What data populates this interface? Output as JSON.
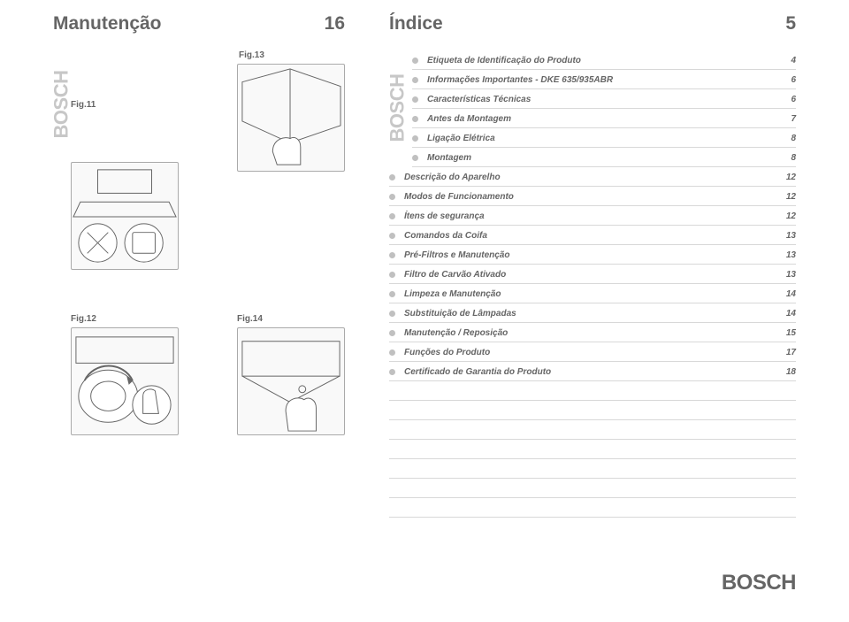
{
  "brand": "BOSCH",
  "left": {
    "title": "Manutenção",
    "page_num": "16",
    "figs": [
      {
        "label": "Fig.11"
      },
      {
        "label": "Fig.13"
      },
      {
        "label": "Fig.12"
      },
      {
        "label": "Fig.14"
      }
    ]
  },
  "right": {
    "title": "Índice",
    "page_num": "5",
    "toc": [
      {
        "title": "Etiqueta de Identificação do Produto",
        "page": "4"
      },
      {
        "title": "Informações Importantes - DKE 635/935ABR",
        "page": "6"
      },
      {
        "title": "Características Técnicas",
        "page": "6"
      },
      {
        "title": "Antes da Montagem",
        "page": "7"
      },
      {
        "title": "Ligação Elétrica",
        "page": "8"
      },
      {
        "title": "Montagem",
        "page": "8"
      },
      {
        "title": "Descrição do Aparelho",
        "page": "12"
      },
      {
        "title": "Modos de Funcionamento",
        "page": "12"
      },
      {
        "title": "Ítens de segurança",
        "page": "12"
      },
      {
        "title": "Comandos da Coifa",
        "page": "13"
      },
      {
        "title": "Pré-Filtros e Manutenção",
        "page": "13"
      },
      {
        "title": "Filtro de Carvão Ativado",
        "page": "13"
      },
      {
        "title": "Limpeza e Manutenção",
        "page": "14"
      },
      {
        "title": "Substituição de Lâmpadas",
        "page": "14"
      },
      {
        "title": "Manutenção / Reposição",
        "page": "15"
      },
      {
        "title": "Funções do Produto",
        "page": "17"
      },
      {
        "title": "Certificado de Garantia do Produto",
        "page": "18"
      }
    ],
    "empty_rows": 7
  },
  "style": {
    "text_color": "#656565",
    "rule_color": "#d8d8d8",
    "bullet_color": "#c0c0c0",
    "vert_brand_color": "#c7c7c7",
    "title_fontsize": 21,
    "toc_fontsize": 10
  }
}
